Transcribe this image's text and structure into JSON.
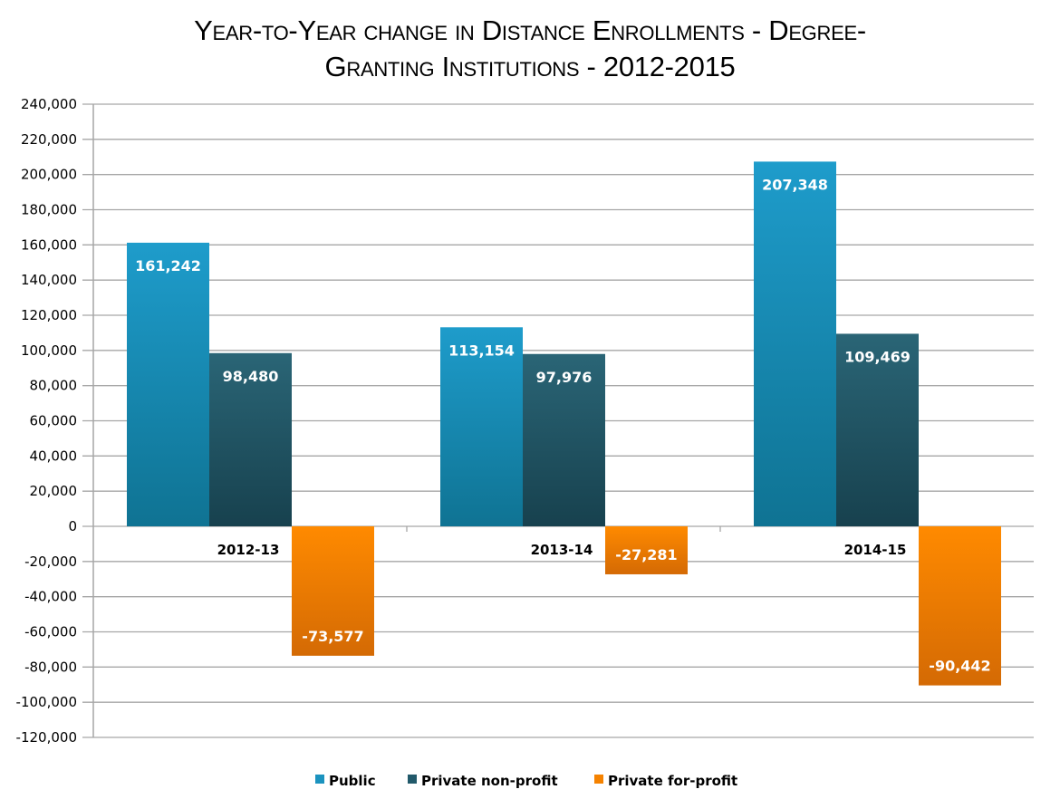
{
  "chart_data": {
    "type": "bar",
    "title": "Year-to-Year change in Distance Enrollments - Degree-Granting Institutions - 2012-2015",
    "xlabel": "",
    "ylabel": "",
    "categories": [
      "2012-13",
      "2013-14",
      "2014-15"
    ],
    "series": [
      {
        "name": "Public",
        "values": [
          161242,
          113154,
          207348
        ],
        "color": "#1b93bf"
      },
      {
        "name": "Private non-profit",
        "values": [
          98480,
          97976,
          109469
        ],
        "color": "#21596a"
      },
      {
        "name": "Private for-profit",
        "values": [
          -73577,
          -27281,
          -90442
        ],
        "color": "#f58200"
      }
    ],
    "data_labels": [
      [
        "161,242",
        "113,154",
        "207,348"
      ],
      [
        "98,480",
        "97,976",
        "109,469"
      ],
      [
        "-73,577",
        "-27,281",
        "-90,442"
      ]
    ],
    "ylim": [
      -120000,
      240000
    ],
    "yticks": [
      240000,
      220000,
      200000,
      180000,
      160000,
      140000,
      120000,
      100000,
      80000,
      60000,
      40000,
      20000,
      0,
      -20000,
      -40000,
      -60000,
      -80000,
      -100000,
      -120000
    ],
    "ytick_labels": [
      "240,000",
      "220,000",
      "200,000",
      "180,000",
      "160,000",
      "140,000",
      "120,000",
      "100,000",
      "80,000",
      "60,000",
      "40,000",
      "20,000",
      "0",
      "-20,000",
      "-40,000",
      "-60,000",
      "-80,000",
      "-100,000",
      "-120,000"
    ],
    "grid": true,
    "legend": "bottom"
  }
}
